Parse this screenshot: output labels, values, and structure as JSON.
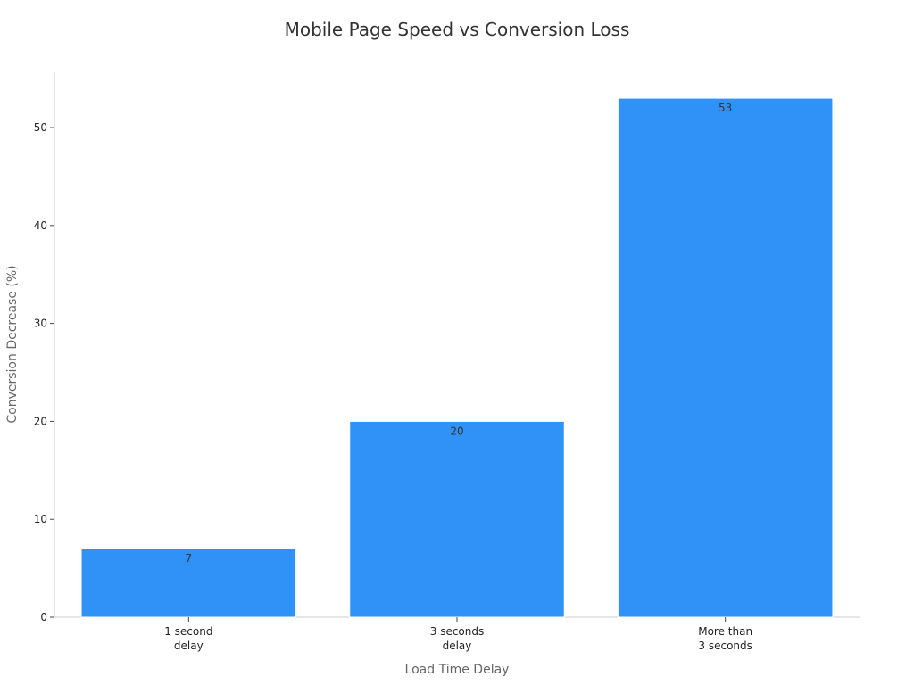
{
  "chart_data": {
    "type": "bar",
    "title": "Mobile Page Speed vs Conversion Loss",
    "xlabel": "Load Time Delay",
    "ylabel": "Conversion Decrease (%)",
    "categories": [
      [
        "1 second",
        "delay"
      ],
      [
        "3 seconds",
        "delay"
      ],
      [
        "More than",
        "3 seconds"
      ]
    ],
    "values": [
      7,
      20,
      53
    ],
    "ylim": [
      0,
      55.65
    ],
    "yticks": [
      0,
      10,
      20,
      30,
      40,
      50
    ],
    "grid": false,
    "legend": "none",
    "colors": {
      "bar": "#3091F6",
      "bar_edge": "#ffffff",
      "axis": "#cccccc"
    }
  }
}
